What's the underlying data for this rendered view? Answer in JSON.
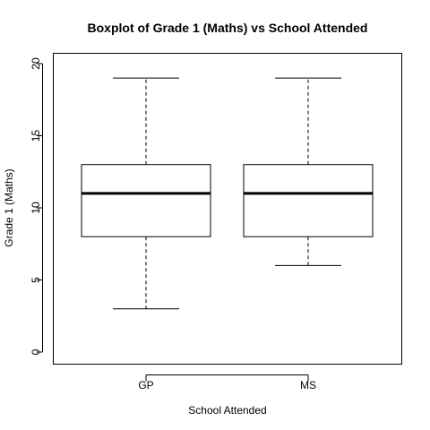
{
  "chart_data": {
    "type": "boxplot",
    "title": "Boxplot of Grade 1 (Maths)  vs  School Attended",
    "xlabel": "School Attended",
    "ylabel": "Grade 1 (Maths)",
    "ylim": [
      0,
      20
    ],
    "yticks": [
      0,
      5,
      10,
      15,
      20
    ],
    "categories": [
      "GP",
      "MS"
    ],
    "boxes": [
      {
        "category": "GP",
        "whisker_low": 3,
        "q1": 8,
        "median": 11,
        "q3": 13,
        "whisker_high": 19
      },
      {
        "category": "MS",
        "whisker_low": 6,
        "q1": 8,
        "median": 11,
        "q3": 13,
        "whisker_high": 19
      }
    ],
    "grid": false,
    "legend": "none"
  }
}
